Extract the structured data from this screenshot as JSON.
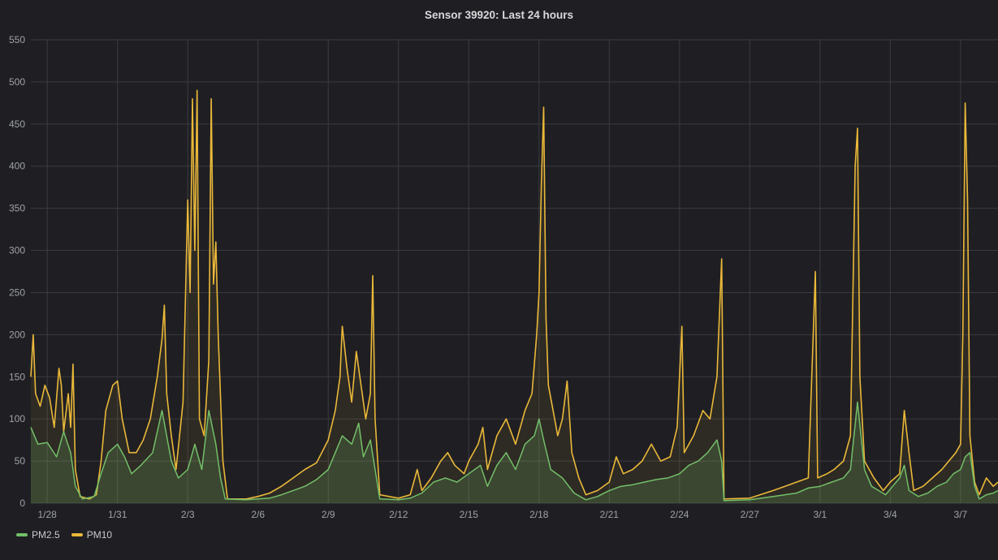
{
  "chart_data": {
    "type": "area",
    "title": "Sensor 39920: Last 24 hours",
    "ylim": [
      0,
      550
    ],
    "yticks": [
      0,
      50,
      100,
      150,
      200,
      250,
      300,
      350,
      400,
      450,
      500,
      550
    ],
    "xlim": [
      -0.7,
      40.6
    ],
    "xticks": [
      {
        "label": "1/28",
        "day": 0
      },
      {
        "label": "1/31",
        "day": 3
      },
      {
        "label": "2/3",
        "day": 6
      },
      {
        "label": "2/6",
        "day": 9
      },
      {
        "label": "2/9",
        "day": 12
      },
      {
        "label": "2/12",
        "day": 15
      },
      {
        "label": "2/15",
        "day": 18
      },
      {
        "label": "2/18",
        "day": 21
      },
      {
        "label": "2/21",
        "day": 24
      },
      {
        "label": "2/24",
        "day": 27
      },
      {
        "label": "2/27",
        "day": 30
      },
      {
        "label": "3/1",
        "day": 33
      },
      {
        "label": "3/4",
        "day": 36
      },
      {
        "label": "3/7",
        "day": 39
      }
    ],
    "grid": true,
    "legend_position": "bottom-left",
    "series": [
      {
        "name": "PM2.5",
        "color": "#73bf69",
        "points": [
          [
            -0.7,
            90
          ],
          [
            -0.4,
            70
          ],
          [
            0.0,
            72
          ],
          [
            0.4,
            55
          ],
          [
            0.7,
            85
          ],
          [
            1.0,
            60
          ],
          [
            1.2,
            20
          ],
          [
            1.5,
            5
          ],
          [
            2.0,
            8
          ],
          [
            2.3,
            35
          ],
          [
            2.6,
            60
          ],
          [
            3.0,
            70
          ],
          [
            3.3,
            55
          ],
          [
            3.6,
            35
          ],
          [
            4.0,
            45
          ],
          [
            4.5,
            60
          ],
          [
            4.9,
            110
          ],
          [
            5.3,
            50
          ],
          [
            5.6,
            30
          ],
          [
            6.0,
            40
          ],
          [
            6.3,
            70
          ],
          [
            6.6,
            40
          ],
          [
            6.9,
            110
          ],
          [
            7.2,
            70
          ],
          [
            7.4,
            30
          ],
          [
            7.6,
            5
          ],
          [
            8.5,
            4
          ],
          [
            9.5,
            6
          ],
          [
            10.0,
            10
          ],
          [
            10.5,
            15
          ],
          [
            11.0,
            20
          ],
          [
            11.5,
            28
          ],
          [
            12.0,
            40
          ],
          [
            12.3,
            60
          ],
          [
            12.6,
            80
          ],
          [
            13.0,
            70
          ],
          [
            13.3,
            95
          ],
          [
            13.5,
            55
          ],
          [
            13.8,
            75
          ],
          [
            14.0,
            40
          ],
          [
            14.2,
            5
          ],
          [
            15.0,
            4
          ],
          [
            15.5,
            6
          ],
          [
            16.0,
            12
          ],
          [
            16.5,
            25
          ],
          [
            17.0,
            30
          ],
          [
            17.5,
            25
          ],
          [
            18.0,
            35
          ],
          [
            18.5,
            45
          ],
          [
            18.8,
            20
          ],
          [
            19.2,
            45
          ],
          [
            19.6,
            60
          ],
          [
            20.0,
            40
          ],
          [
            20.4,
            70
          ],
          [
            20.8,
            80
          ],
          [
            21.0,
            100
          ],
          [
            21.2,
            75
          ],
          [
            21.5,
            40
          ],
          [
            22.0,
            30
          ],
          [
            22.5,
            12
          ],
          [
            23.0,
            4
          ],
          [
            23.5,
            8
          ],
          [
            24.0,
            15
          ],
          [
            24.5,
            20
          ],
          [
            25.0,
            22
          ],
          [
            25.5,
            25
          ],
          [
            26.0,
            28
          ],
          [
            26.5,
            30
          ],
          [
            27.0,
            35
          ],
          [
            27.4,
            45
          ],
          [
            27.8,
            50
          ],
          [
            28.2,
            60
          ],
          [
            28.6,
            75
          ],
          [
            28.8,
            50
          ],
          [
            28.9,
            3
          ],
          [
            30.0,
            4
          ],
          [
            31.0,
            8
          ],
          [
            31.5,
            10
          ],
          [
            32.0,
            12
          ],
          [
            32.5,
            18
          ],
          [
            33.0,
            20
          ],
          [
            33.5,
            25
          ],
          [
            34.0,
            30
          ],
          [
            34.3,
            40
          ],
          [
            34.6,
            120
          ],
          [
            34.9,
            40
          ],
          [
            35.2,
            20
          ],
          [
            35.5,
            15
          ],
          [
            35.8,
            10
          ],
          [
            36.1,
            20
          ],
          [
            36.4,
            30
          ],
          [
            36.6,
            45
          ],
          [
            36.8,
            15
          ],
          [
            37.2,
            8
          ],
          [
            37.6,
            12
          ],
          [
            38.0,
            20
          ],
          [
            38.4,
            25
          ],
          [
            38.7,
            35
          ],
          [
            39.0,
            40
          ],
          [
            39.2,
            55
          ],
          [
            39.4,
            60
          ],
          [
            39.6,
            20
          ],
          [
            39.8,
            5
          ],
          [
            40.1,
            10
          ],
          [
            40.4,
            12
          ],
          [
            40.6,
            15
          ]
        ]
      },
      {
        "name": "PM10",
        "color": "#eab839",
        "points": [
          [
            -0.7,
            150
          ],
          [
            -0.6,
            200
          ],
          [
            -0.5,
            130
          ],
          [
            -0.3,
            115
          ],
          [
            -0.1,
            140
          ],
          [
            0.1,
            125
          ],
          [
            0.3,
            90
          ],
          [
            0.5,
            160
          ],
          [
            0.6,
            140
          ],
          [
            0.7,
            85
          ],
          [
            0.9,
            130
          ],
          [
            1.0,
            90
          ],
          [
            1.1,
            165
          ],
          [
            1.2,
            40
          ],
          [
            1.4,
            8
          ],
          [
            1.8,
            5
          ],
          [
            2.1,
            10
          ],
          [
            2.3,
            50
          ],
          [
            2.5,
            110
          ],
          [
            2.8,
            140
          ],
          [
            3.0,
            145
          ],
          [
            3.2,
            100
          ],
          [
            3.5,
            60
          ],
          [
            3.8,
            60
          ],
          [
            4.1,
            75
          ],
          [
            4.4,
            100
          ],
          [
            4.7,
            150
          ],
          [
            4.9,
            195
          ],
          [
            5.0,
            235
          ],
          [
            5.1,
            130
          ],
          [
            5.3,
            80
          ],
          [
            5.5,
            40
          ],
          [
            5.8,
            120
          ],
          [
            6.0,
            360
          ],
          [
            6.1,
            250
          ],
          [
            6.2,
            480
          ],
          [
            6.3,
            300
          ],
          [
            6.4,
            490
          ],
          [
            6.5,
            100
          ],
          [
            6.7,
            80
          ],
          [
            6.9,
            170
          ],
          [
            7.0,
            480
          ],
          [
            7.1,
            260
          ],
          [
            7.2,
            310
          ],
          [
            7.3,
            200
          ],
          [
            7.5,
            50
          ],
          [
            7.7,
            5
          ],
          [
            8.5,
            5
          ],
          [
            9.0,
            8
          ],
          [
            9.5,
            12
          ],
          [
            10.0,
            20
          ],
          [
            10.5,
            30
          ],
          [
            11.0,
            40
          ],
          [
            11.5,
            48
          ],
          [
            12.0,
            75
          ],
          [
            12.3,
            110
          ],
          [
            12.5,
            150
          ],
          [
            12.6,
            210
          ],
          [
            12.8,
            160
          ],
          [
            13.0,
            120
          ],
          [
            13.2,
            180
          ],
          [
            13.4,
            140
          ],
          [
            13.6,
            100
          ],
          [
            13.8,
            130
          ],
          [
            13.9,
            270
          ],
          [
            14.0,
            100
          ],
          [
            14.2,
            10
          ],
          [
            15.0,
            6
          ],
          [
            15.5,
            10
          ],
          [
            15.8,
            40
          ],
          [
            16.0,
            15
          ],
          [
            16.4,
            30
          ],
          [
            16.8,
            50
          ],
          [
            17.1,
            60
          ],
          [
            17.4,
            45
          ],
          [
            17.8,
            35
          ],
          [
            18.0,
            50
          ],
          [
            18.4,
            70
          ],
          [
            18.6,
            90
          ],
          [
            18.8,
            40
          ],
          [
            19.2,
            80
          ],
          [
            19.6,
            100
          ],
          [
            20.0,
            70
          ],
          [
            20.4,
            110
          ],
          [
            20.7,
            130
          ],
          [
            20.9,
            200
          ],
          [
            21.0,
            250
          ],
          [
            21.1,
            380
          ],
          [
            21.2,
            470
          ],
          [
            21.3,
            220
          ],
          [
            21.4,
            140
          ],
          [
            21.6,
            110
          ],
          [
            21.8,
            80
          ],
          [
            22.0,
            100
          ],
          [
            22.2,
            145
          ],
          [
            22.4,
            60
          ],
          [
            22.7,
            30
          ],
          [
            23.0,
            10
          ],
          [
            23.5,
            15
          ],
          [
            24.0,
            25
          ],
          [
            24.3,
            55
          ],
          [
            24.6,
            35
          ],
          [
            25.0,
            40
          ],
          [
            25.4,
            50
          ],
          [
            25.8,
            70
          ],
          [
            26.2,
            50
          ],
          [
            26.6,
            55
          ],
          [
            26.9,
            90
          ],
          [
            27.1,
            210
          ],
          [
            27.2,
            60
          ],
          [
            27.6,
            80
          ],
          [
            28.0,
            110
          ],
          [
            28.3,
            100
          ],
          [
            28.6,
            150
          ],
          [
            28.8,
            290
          ],
          [
            28.9,
            5
          ],
          [
            30.0,
            6
          ],
          [
            31.0,
            15
          ],
          [
            31.5,
            20
          ],
          [
            32.0,
            25
          ],
          [
            32.5,
            30
          ],
          [
            32.8,
            275
          ],
          [
            32.9,
            30
          ],
          [
            33.3,
            35
          ],
          [
            33.6,
            40
          ],
          [
            34.0,
            50
          ],
          [
            34.3,
            80
          ],
          [
            34.5,
            400
          ],
          [
            34.6,
            445
          ],
          [
            34.7,
            150
          ],
          [
            34.9,
            50
          ],
          [
            35.3,
            30
          ],
          [
            35.7,
            15
          ],
          [
            36.0,
            25
          ],
          [
            36.4,
            35
          ],
          [
            36.6,
            110
          ],
          [
            36.8,
            60
          ],
          [
            37.0,
            15
          ],
          [
            37.4,
            20
          ],
          [
            37.8,
            30
          ],
          [
            38.2,
            40
          ],
          [
            38.5,
            50
          ],
          [
            38.8,
            60
          ],
          [
            39.0,
            70
          ],
          [
            39.1,
            200
          ],
          [
            39.2,
            475
          ],
          [
            39.3,
            360
          ],
          [
            39.4,
            80
          ],
          [
            39.6,
            25
          ],
          [
            39.8,
            10
          ],
          [
            40.1,
            30
          ],
          [
            40.4,
            20
          ],
          [
            40.6,
            25
          ]
        ]
      }
    ]
  }
}
